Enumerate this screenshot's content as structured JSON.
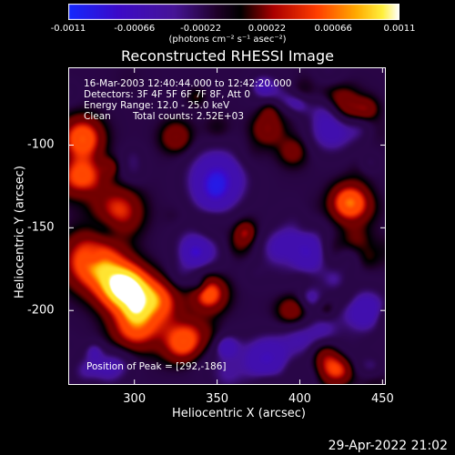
{
  "chart_data": {
    "type": "heatmap",
    "title": "Reconstructed RHESSI Image",
    "xlabel": "Heliocentric X (arcsec)",
    "ylabel": "Heliocentric Y (arcsec)",
    "xlim": [
      260,
      452
    ],
    "ylim": [
      -245,
      -53
    ],
    "x_ticks": [
      "300",
      "350",
      "400",
      "450"
    ],
    "x_tick_values": [
      300,
      350,
      400,
      450
    ],
    "y_ticks": [
      "-100",
      "-150",
      "-200"
    ],
    "y_tick_values": [
      -100,
      -150,
      -200
    ],
    "colorbar": {
      "range": [
        -0.0011,
        0.0011
      ],
      "tick_labels": [
        "-0.0011",
        "-0.00066",
        "-0.00022",
        "0.00022",
        "0.00066",
        "0.0011"
      ],
      "tick_values": [
        -0.0011,
        -0.00066,
        -0.00022,
        0.00022,
        0.00066,
        0.0011
      ],
      "unit_label": "(photons cm⁻² s⁻¹ asec⁻²)"
    },
    "annotations": {
      "time_range": "16-Mar-2003 12:40:44.000 to 12:42:20.000",
      "detectors": "Detectors: 3F 4F 5F 6F 7F 8F, Att 0",
      "energy_range": "Energy Range: 12.0 - 25.0 keV",
      "clean": "Clean",
      "total_counts": "Total counts: 2.52E+03",
      "peak_position": "Position of Peak = [292,-186]"
    },
    "peak": {
      "x": 292,
      "y": -186
    },
    "bright_regions": [
      {
        "x": 292,
        "y": -186,
        "intensity": 1.0,
        "sigma": 10
      },
      {
        "x": 275,
        "y": -170,
        "intensity": 0.8,
        "sigma": 12
      },
      {
        "x": 312,
        "y": -195,
        "intensity": 0.75,
        "sigma": 10
      },
      {
        "x": 268,
        "y": -120,
        "intensity": 0.7,
        "sigma": 9
      },
      {
        "x": 268,
        "y": -95,
        "intensity": 0.6,
        "sigma": 9
      },
      {
        "x": 330,
        "y": -220,
        "intensity": 0.75,
        "sigma": 9
      },
      {
        "x": 300,
        "y": -210,
        "intensity": 0.6,
        "sigma": 10
      },
      {
        "x": 430,
        "y": -135,
        "intensity": 0.85,
        "sigma": 8
      },
      {
        "x": 345,
        "y": -190,
        "intensity": 0.5,
        "sigma": 8
      },
      {
        "x": 420,
        "y": -235,
        "intensity": 0.5,
        "sigma": 7
      },
      {
        "x": 395,
        "y": -200,
        "intensity": 0.35,
        "sigma": 7
      },
      {
        "x": 380,
        "y": -90,
        "intensity": 0.35,
        "sigma": 7
      },
      {
        "x": 325,
        "y": -95,
        "intensity": 0.35,
        "sigma": 7
      },
      {
        "x": 290,
        "y": -140,
        "intensity": 0.55,
        "sigma": 10
      }
    ],
    "dark_regions": [
      {
        "x": 350,
        "y": -120,
        "intensity": -0.6,
        "sigma": 12
      },
      {
        "x": 400,
        "y": -165,
        "intensity": -0.5,
        "sigma": 12
      },
      {
        "x": 380,
        "y": -230,
        "intensity": -0.55,
        "sigma": 10
      },
      {
        "x": 340,
        "y": -160,
        "intensity": -0.45,
        "sigma": 10
      },
      {
        "x": 420,
        "y": -90,
        "intensity": -0.4,
        "sigma": 10
      },
      {
        "x": 440,
        "y": -200,
        "intensity": -0.45,
        "sigma": 9
      }
    ]
  },
  "footer": {
    "date": "29-Apr-2022 21:02"
  }
}
